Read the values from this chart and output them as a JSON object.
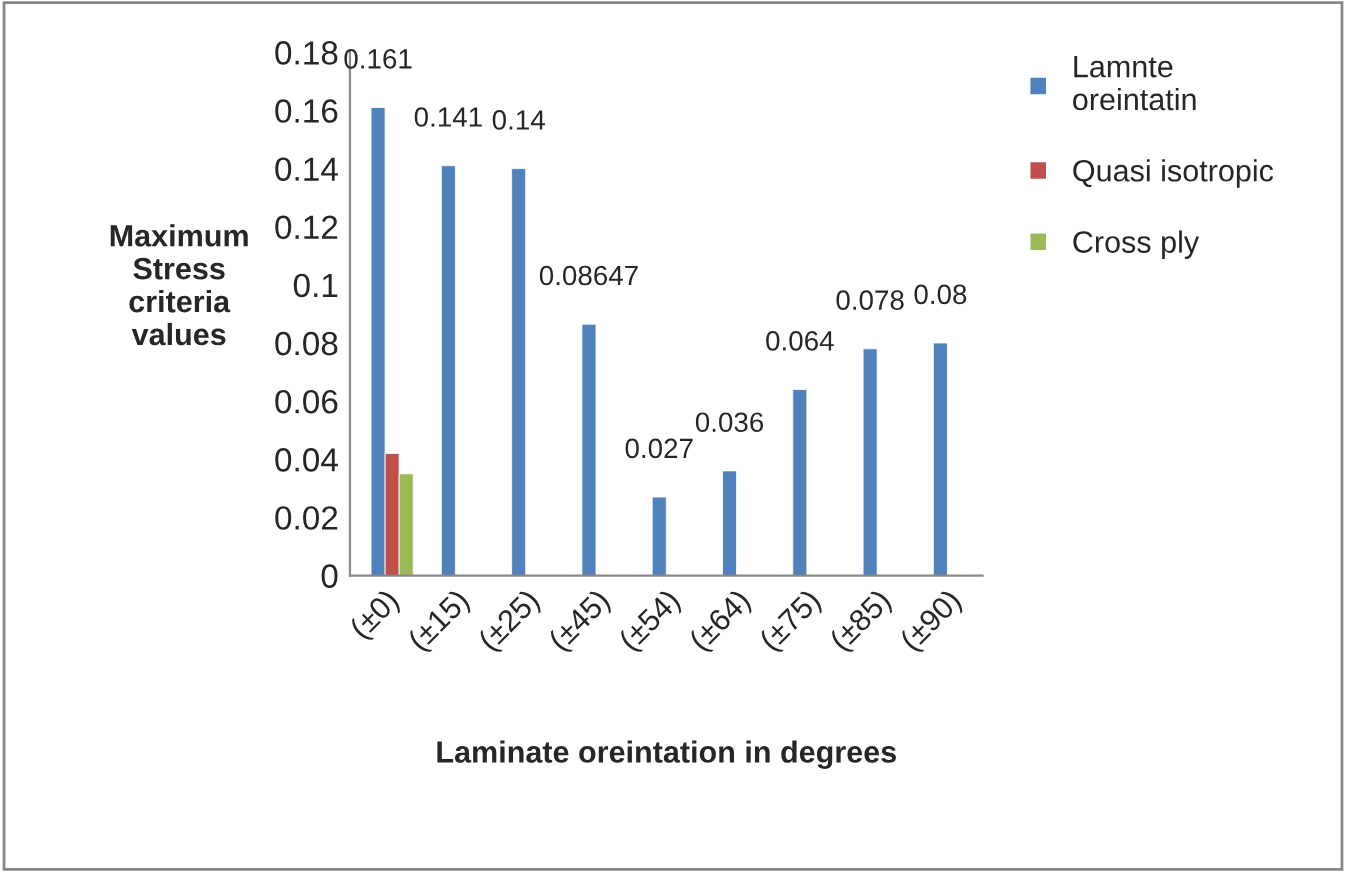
{
  "chart_data": {
    "type": "bar",
    "categories": [
      "(±0)",
      "(±15)",
      "(±25)",
      "(±45)",
      "(±54)",
      "(±64)",
      "(±75)",
      "(±85)",
      "(±90)"
    ],
    "series": [
      {
        "name": "Lamnte oreintatin",
        "color": "#4f81bd",
        "values": [
          0.161,
          0.141,
          0.14,
          0.08647,
          0.027,
          0.036,
          0.064,
          0.078,
          0.08
        ],
        "value_labels": [
          "0.161",
          "0.141",
          "0.14",
          "0.08647",
          "0.027",
          "0.036",
          "0.064",
          "0.078",
          "0.08"
        ]
      },
      {
        "name": "Quasi isotropic",
        "color": "#c0504d",
        "values": [
          0.042,
          null,
          null,
          null,
          null,
          null,
          null,
          null,
          null
        ]
      },
      {
        "name": "Cross ply",
        "color": "#9bbb59",
        "values": [
          0.035,
          null,
          null,
          null,
          null,
          null,
          null,
          null,
          null
        ]
      }
    ],
    "xlabel": "Laminate oreintation in degrees",
    "ylabel": "Maximum\nStress\ncriteria\nvalues",
    "ylim": [
      0,
      0.18
    ],
    "yticks": [
      0,
      0.02,
      0.04,
      0.06,
      0.08,
      0.1,
      0.12,
      0.14,
      0.16,
      0.18
    ],
    "grid": false,
    "legend": "right"
  }
}
